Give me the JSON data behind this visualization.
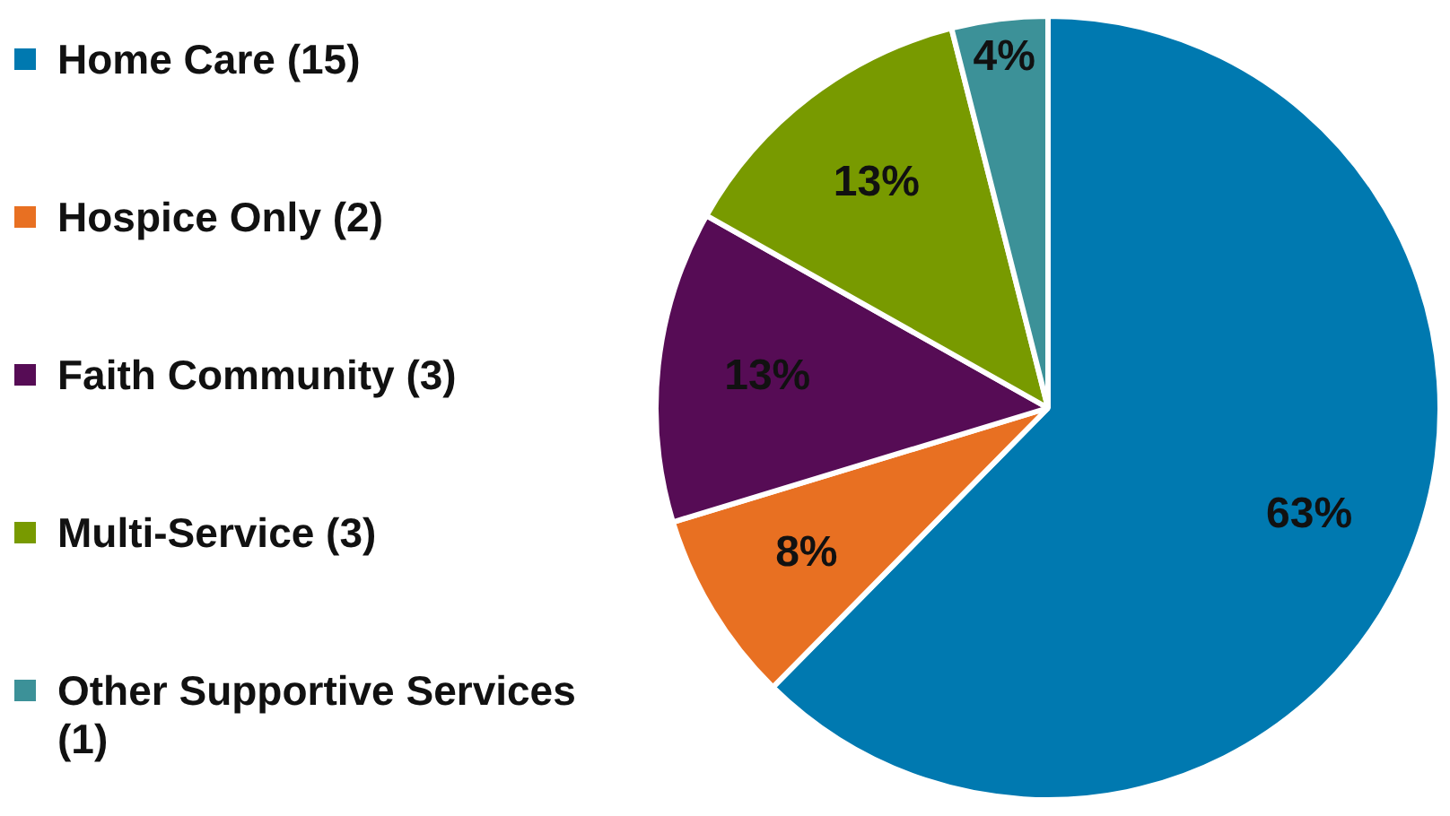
{
  "chart_data": {
    "type": "pie",
    "categories": [
      "Home Care (15)",
      "Hospice Only (2)",
      "Faith Community (3)",
      "Multi-Service (3)",
      "Other Supportive Services (1)"
    ],
    "values": [
      63,
      8,
      13,
      13,
      4
    ],
    "colors": [
      "#0079b0",
      "#e87022",
      "#560c55",
      "#789a00",
      "#3c9198"
    ],
    "value_labels": [
      "63%",
      "8%",
      "13%",
      "13%",
      "4%"
    ],
    "legend": "left"
  }
}
